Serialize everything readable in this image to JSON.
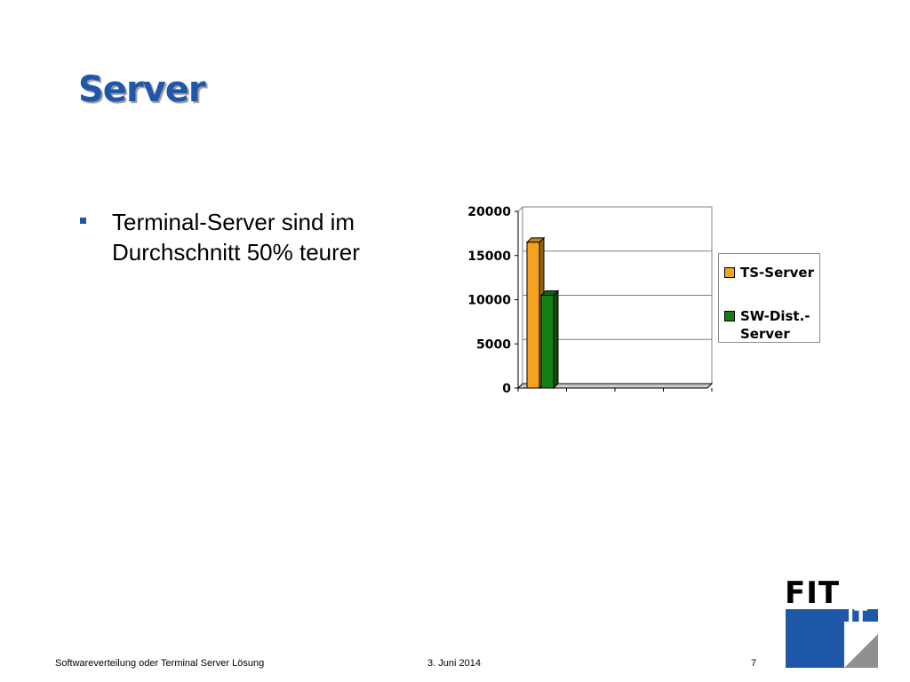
{
  "slide": {
    "title": "Server",
    "bullet": "Terminal-Server sind im Durchschnitt 50% teurer"
  },
  "chart_data": {
    "type": "bar",
    "title": "",
    "xlabel": "",
    "ylabel": "",
    "ylim": [
      0,
      20000
    ],
    "yticks": [
      "0",
      "5000",
      "10000",
      "15000",
      "20000"
    ],
    "categories": [
      "",
      "",
      "",
      ""
    ],
    "series": [
      {
        "name": "TS-Server",
        "color": "#f4a21f",
        "values": [
          16500,
          0,
          0,
          0
        ]
      },
      {
        "name": "SW-Dist.-Server",
        "color": "#148014",
        "values": [
          10500,
          0,
          0,
          0
        ]
      }
    ],
    "grid": true,
    "legend": "right",
    "style": "3d-bar"
  },
  "footer": {
    "left": "Softwareverteilung oder Terminal Server Lösung",
    "date": "3. Juni 2014",
    "page": "7"
  },
  "logo": {
    "top": "FIT",
    "bottom": "IT"
  },
  "colors": {
    "accent": "#1f58a8",
    "title_shadow": "#9a9a9a"
  }
}
